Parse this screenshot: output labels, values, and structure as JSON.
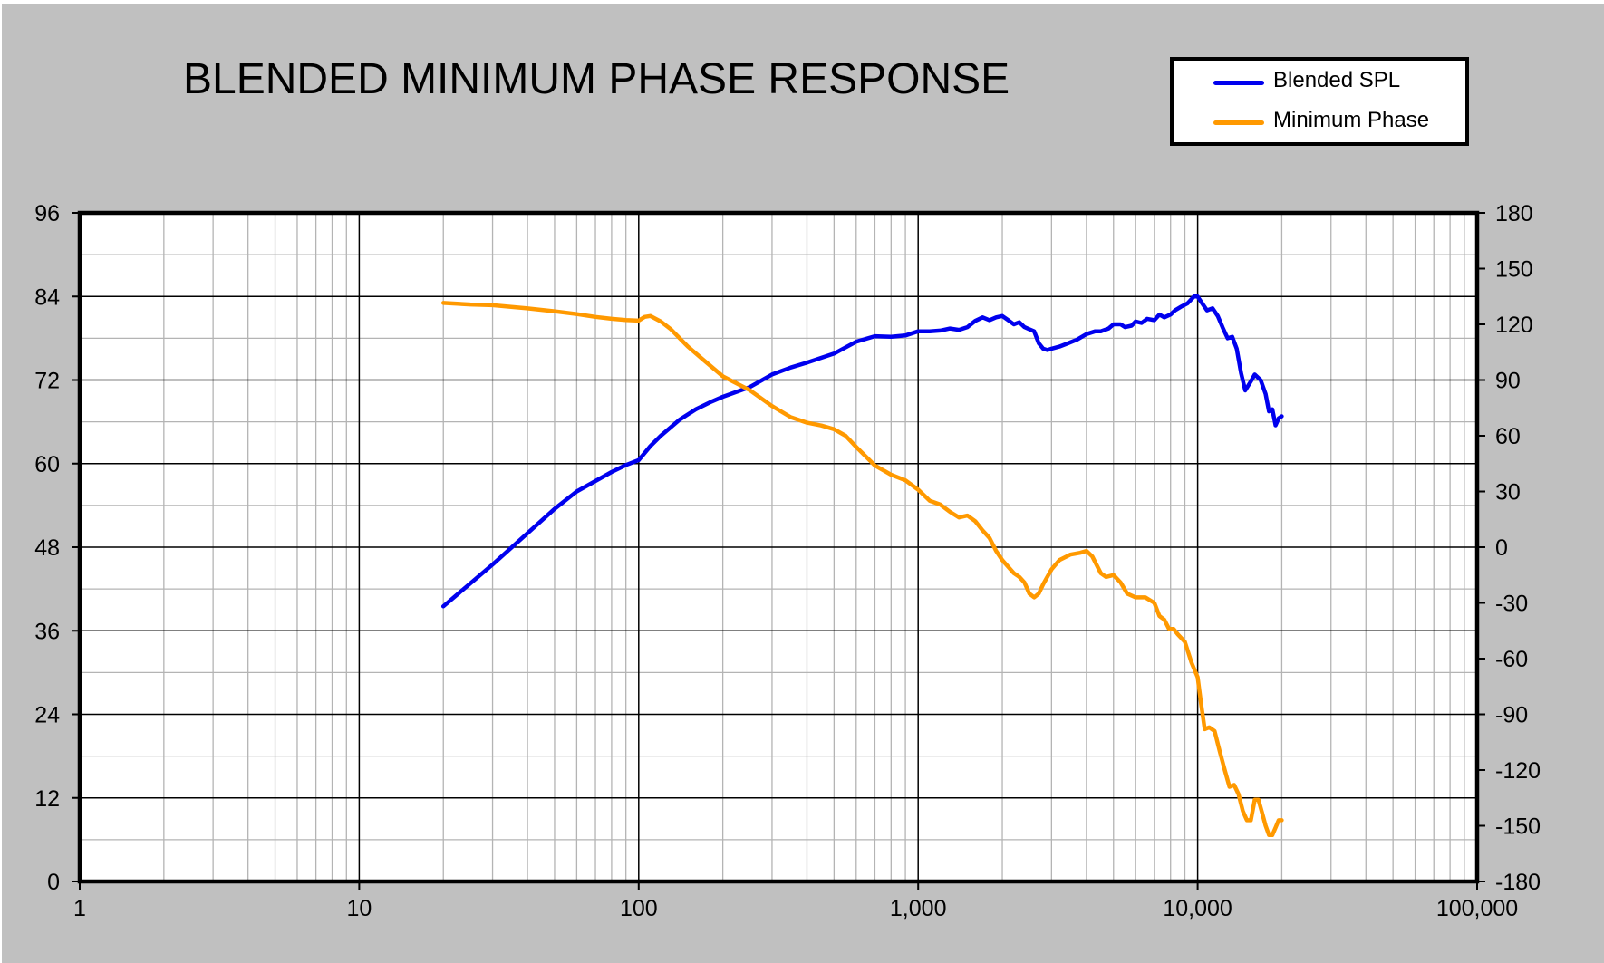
{
  "chart_data": {
    "type": "line",
    "title": "BLENDED MINIMUM PHASE RESPONSE",
    "xlabel": "",
    "ylabel": "",
    "y2label": "",
    "x_scale": "log",
    "xlim": [
      1,
      100000
    ],
    "ylim": [
      0,
      96
    ],
    "y2lim": [
      -180,
      180
    ],
    "grid": true,
    "legend_position": "top-right",
    "x_ticks": [
      {
        "value": 1,
        "label": "1"
      },
      {
        "value": 10,
        "label": "10"
      },
      {
        "value": 100,
        "label": "100"
      },
      {
        "value": 1000,
        "label": "1,000"
      },
      {
        "value": 10000,
        "label": "10,000"
      },
      {
        "value": 100000,
        "label": "100,000"
      }
    ],
    "y_ticks": [
      0,
      12,
      24,
      36,
      48,
      60,
      72,
      84,
      96
    ],
    "y2_ticks": [
      -180,
      -150,
      -120,
      -90,
      -60,
      -30,
      0,
      30,
      60,
      90,
      120,
      150,
      180
    ],
    "colors": {
      "background": "#c0c0c0",
      "plot_background": "#ffffff",
      "major_grid": "#000000",
      "minor_grid": "#b4b4b4",
      "border": "#000000"
    },
    "series": [
      {
        "name": "Blended SPL",
        "axis": "left",
        "color": "#0000ee",
        "points": [
          [
            20,
            39.5
          ],
          [
            30,
            45.5
          ],
          [
            40,
            50
          ],
          [
            50,
            53.5
          ],
          [
            60,
            56
          ],
          [
            70,
            57.5
          ],
          [
            80,
            58.8
          ],
          [
            90,
            59.8
          ],
          [
            100,
            60.5
          ],
          [
            110,
            62.5
          ],
          [
            120,
            64
          ],
          [
            140,
            66.3
          ],
          [
            160,
            67.8
          ],
          [
            180,
            68.8
          ],
          [
            200,
            69.6
          ],
          [
            250,
            71
          ],
          [
            300,
            72.8
          ],
          [
            350,
            73.8
          ],
          [
            400,
            74.5
          ],
          [
            500,
            75.8
          ],
          [
            600,
            77.5
          ],
          [
            700,
            78.3
          ],
          [
            800,
            78.2
          ],
          [
            900,
            78.4
          ],
          [
            1000,
            79
          ],
          [
            1100,
            79
          ],
          [
            1200,
            79.1
          ],
          [
            1300,
            79.4
          ],
          [
            1400,
            79.2
          ],
          [
            1500,
            79.6
          ],
          [
            1600,
            80.5
          ],
          [
            1700,
            81
          ],
          [
            1800,
            80.6
          ],
          [
            1900,
            81
          ],
          [
            2000,
            81.2
          ],
          [
            2100,
            80.6
          ],
          [
            2200,
            80
          ],
          [
            2300,
            80.3
          ],
          [
            2400,
            79.6
          ],
          [
            2500,
            79.3
          ],
          [
            2600,
            79
          ],
          [
            2700,
            77.3
          ],
          [
            2800,
            76.5
          ],
          [
            2900,
            76.3
          ],
          [
            3000,
            76.5
          ],
          [
            3200,
            76.8
          ],
          [
            3400,
            77.2
          ],
          [
            3700,
            77.8
          ],
          [
            4000,
            78.6
          ],
          [
            4300,
            79
          ],
          [
            4500,
            79
          ],
          [
            4800,
            79.4
          ],
          [
            5000,
            80
          ],
          [
            5300,
            80
          ],
          [
            5500,
            79.6
          ],
          [
            5800,
            79.8
          ],
          [
            6000,
            80.4
          ],
          [
            6300,
            80.2
          ],
          [
            6600,
            80.8
          ],
          [
            7000,
            80.6
          ],
          [
            7300,
            81.4
          ],
          [
            7600,
            81
          ],
          [
            8000,
            81.4
          ],
          [
            8300,
            82
          ],
          [
            8700,
            82.5
          ],
          [
            9200,
            83
          ],
          [
            9700,
            84
          ],
          [
            10000,
            84
          ],
          [
            10300,
            83.2
          ],
          [
            10800,
            82
          ],
          [
            11300,
            82.3
          ],
          [
            11800,
            81.2
          ],
          [
            12300,
            79.5
          ],
          [
            12800,
            78
          ],
          [
            13300,
            78.2
          ],
          [
            13800,
            76.5
          ],
          [
            14300,
            73
          ],
          [
            14800,
            70.5
          ],
          [
            15500,
            71.8
          ],
          [
            16000,
            72.8
          ],
          [
            16800,
            72
          ],
          [
            17500,
            70
          ],
          [
            18000,
            67.5
          ],
          [
            18500,
            67.8
          ],
          [
            19000,
            65.5
          ],
          [
            19500,
            66.5
          ],
          [
            20000,
            66.8
          ]
        ]
      },
      {
        "name": "Minimum Phase",
        "axis": "right",
        "color": "#ff9900",
        "points": [
          [
            20,
            131.5
          ],
          [
            25,
            130.7
          ],
          [
            30,
            130.3
          ],
          [
            40,
            128.6
          ],
          [
            50,
            127
          ],
          [
            60,
            125.5
          ],
          [
            70,
            124
          ],
          [
            80,
            123
          ],
          [
            90,
            122.3
          ],
          [
            100,
            122
          ],
          [
            105,
            124
          ],
          [
            110,
            124.5
          ],
          [
            120,
            121.5
          ],
          [
            130,
            117.5
          ],
          [
            150,
            108
          ],
          [
            170,
            101
          ],
          [
            200,
            92
          ],
          [
            250,
            84.5
          ],
          [
            300,
            76
          ],
          [
            350,
            70
          ],
          [
            400,
            67
          ],
          [
            450,
            65.5
          ],
          [
            500,
            63.5
          ],
          [
            550,
            60
          ],
          [
            600,
            54
          ],
          [
            700,
            44
          ],
          [
            800,
            39
          ],
          [
            900,
            36
          ],
          [
            1000,
            31
          ],
          [
            1100,
            25
          ],
          [
            1200,
            23
          ],
          [
            1300,
            19
          ],
          [
            1400,
            16
          ],
          [
            1500,
            17
          ],
          [
            1600,
            14
          ],
          [
            1700,
            9
          ],
          [
            1800,
            5
          ],
          [
            1900,
            -2
          ],
          [
            2000,
            -7
          ],
          [
            2200,
            -14
          ],
          [
            2300,
            -16
          ],
          [
            2400,
            -19
          ],
          [
            2500,
            -25
          ],
          [
            2600,
            -27
          ],
          [
            2700,
            -25
          ],
          [
            2800,
            -20
          ],
          [
            3000,
            -12
          ],
          [
            3200,
            -7
          ],
          [
            3500,
            -4
          ],
          [
            3800,
            -3
          ],
          [
            4000,
            -2
          ],
          [
            4200,
            -5
          ],
          [
            4500,
            -14
          ],
          [
            4700,
            -16
          ],
          [
            5000,
            -15
          ],
          [
            5300,
            -19
          ],
          [
            5600,
            -25
          ],
          [
            6000,
            -27
          ],
          [
            6500,
            -27
          ],
          [
            7000,
            -30
          ],
          [
            7300,
            -37
          ],
          [
            7600,
            -39
          ],
          [
            7900,
            -44
          ],
          [
            8200,
            -44
          ],
          [
            8500,
            -47
          ],
          [
            9000,
            -51
          ],
          [
            9500,
            -62
          ],
          [
            10000,
            -70
          ],
          [
            10300,
            -85
          ],
          [
            10600,
            -98
          ],
          [
            11000,
            -97
          ],
          [
            11500,
            -99
          ],
          [
            12000,
            -110
          ],
          [
            12500,
            -120
          ],
          [
            13000,
            -129
          ],
          [
            13500,
            -128
          ],
          [
            14000,
            -133
          ],
          [
            14500,
            -142
          ],
          [
            15000,
            -147
          ],
          [
            15500,
            -147
          ],
          [
            16000,
            -136
          ],
          [
            16500,
            -136
          ],
          [
            17000,
            -143
          ],
          [
            17500,
            -150
          ],
          [
            18000,
            -155
          ],
          [
            18500,
            -155
          ],
          [
            19000,
            -151
          ],
          [
            19500,
            -147
          ],
          [
            20000,
            -147
          ]
        ]
      }
    ]
  }
}
